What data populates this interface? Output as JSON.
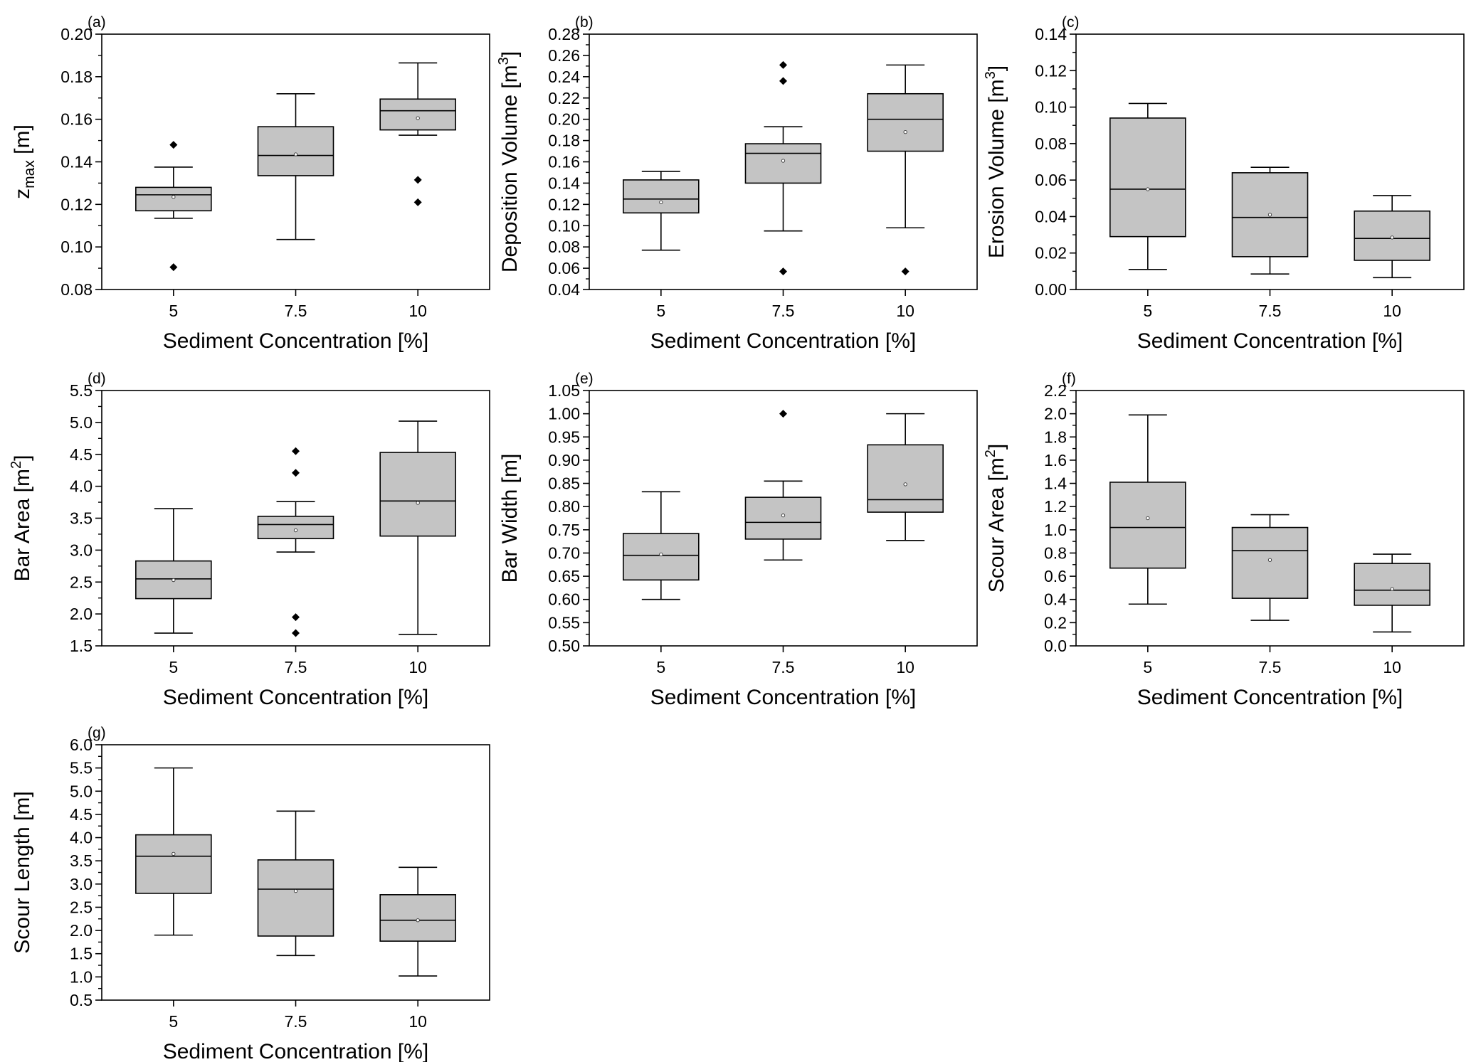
{
  "chart_data": [
    {
      "type": "box",
      "panel_label": "(a)",
      "xlabel": "Sediment Concentration [%]",
      "ylabel": {
        "base": "z",
        "sub": "max",
        "unit": " [m]"
      },
      "categories": [
        "5",
        "7.5",
        "10"
      ],
      "ylim": [
        0.08,
        0.2
      ],
      "yticks": [
        0.08,
        0.1,
        0.12,
        0.14,
        0.16,
        0.18,
        0.2
      ],
      "tick_decimals": 2,
      "boxes": [
        {
          "whisker_low": 0.1135,
          "q1": 0.117,
          "median": 0.1245,
          "q3": 0.128,
          "whisker_high": 0.1375,
          "mean": 0.1235,
          "outliers": [
            0.148,
            0.0905
          ]
        },
        {
          "whisker_low": 0.1035,
          "q1": 0.1335,
          "median": 0.143,
          "q3": 0.1565,
          "whisker_high": 0.172,
          "mean": 0.1435,
          "outliers": []
        },
        {
          "whisker_low": 0.1525,
          "q1": 0.155,
          "median": 0.164,
          "q3": 0.1695,
          "whisker_high": 0.1865,
          "mean": 0.1605,
          "outliers": [
            0.1315,
            0.121
          ]
        }
      ]
    },
    {
      "type": "box",
      "panel_label": "(b)",
      "xlabel": "Sediment Concentration [%]",
      "ylabel": {
        "base": "Deposition Volume [m",
        "sup": "3",
        "unit": "]"
      },
      "categories": [
        "5",
        "7.5",
        "10"
      ],
      "ylim": [
        0.04,
        0.28
      ],
      "yticks": [
        0.04,
        0.06,
        0.08,
        0.1,
        0.12,
        0.14,
        0.16,
        0.18,
        0.2,
        0.22,
        0.24,
        0.26,
        0.28
      ],
      "tick_decimals": 2,
      "boxes": [
        {
          "whisker_low": 0.077,
          "q1": 0.112,
          "median": 0.125,
          "q3": 0.143,
          "whisker_high": 0.151,
          "mean": 0.122,
          "outliers": []
        },
        {
          "whisker_low": 0.095,
          "q1": 0.14,
          "median": 0.168,
          "q3": 0.177,
          "whisker_high": 0.193,
          "mean": 0.161,
          "outliers": [
            0.251,
            0.236,
            0.057
          ]
        },
        {
          "whisker_low": 0.098,
          "q1": 0.17,
          "median": 0.2,
          "q3": 0.224,
          "whisker_high": 0.251,
          "mean": 0.188,
          "outliers": [
            0.057
          ]
        }
      ]
    },
    {
      "type": "box",
      "panel_label": "(c)",
      "xlabel": "Sediment Concentration [%]",
      "ylabel": {
        "base": "Erosion Volume [m",
        "sup": "3",
        "unit": "]"
      },
      "categories": [
        "5",
        "7.5",
        "10"
      ],
      "ylim": [
        0.0,
        0.14
      ],
      "yticks": [
        0.0,
        0.02,
        0.04,
        0.06,
        0.08,
        0.1,
        0.12,
        0.14
      ],
      "tick_decimals": 2,
      "boxes": [
        {
          "whisker_low": 0.011,
          "q1": 0.029,
          "median": 0.055,
          "q3": 0.094,
          "whisker_high": 0.102,
          "mean": 0.055,
          "outliers": []
        },
        {
          "whisker_low": 0.0085,
          "q1": 0.018,
          "median": 0.0395,
          "q3": 0.064,
          "whisker_high": 0.067,
          "mean": 0.041,
          "outliers": []
        },
        {
          "whisker_low": 0.0065,
          "q1": 0.016,
          "median": 0.028,
          "q3": 0.043,
          "whisker_high": 0.0515,
          "mean": 0.0285,
          "outliers": []
        }
      ]
    },
    {
      "type": "box",
      "panel_label": "(d)",
      "xlabel": "Sediment Concentration [%]",
      "ylabel": {
        "base": "Bar Area [m",
        "sup": "2",
        "unit": "]"
      },
      "categories": [
        "5",
        "7.5",
        "10"
      ],
      "ylim": [
        1.5,
        5.5
      ],
      "yticks": [
        1.5,
        2.0,
        2.5,
        3.0,
        3.5,
        4.0,
        4.5,
        5.0,
        5.5
      ],
      "tick_decimals": 1,
      "boxes": [
        {
          "whisker_low": 1.7,
          "q1": 2.24,
          "median": 2.55,
          "q3": 2.83,
          "whisker_high": 3.65,
          "mean": 2.53,
          "outliers": []
        },
        {
          "whisker_low": 2.97,
          "q1": 3.18,
          "median": 3.4,
          "q3": 3.53,
          "whisker_high": 3.76,
          "mean": 3.31,
          "outliers": [
            4.55,
            4.21,
            1.95,
            1.7
          ]
        },
        {
          "whisker_low": 1.68,
          "q1": 3.22,
          "median": 3.77,
          "q3": 4.53,
          "whisker_high": 5.02,
          "mean": 3.74,
          "outliers": []
        }
      ]
    },
    {
      "type": "box",
      "panel_label": "(e)",
      "xlabel": "Sediment Concentration [%]",
      "ylabel": {
        "base": "Bar Width [m]"
      },
      "categories": [
        "5",
        "7.5",
        "10"
      ],
      "ylim": [
        0.5,
        1.05
      ],
      "yticks": [
        0.5,
        0.55,
        0.6,
        0.65,
        0.7,
        0.75,
        0.8,
        0.85,
        0.9,
        0.95,
        1.0,
        1.05
      ],
      "tick_decimals": 2,
      "boxes": [
        {
          "whisker_low": 0.6,
          "q1": 0.642,
          "median": 0.695,
          "q3": 0.742,
          "whisker_high": 0.832,
          "mean": 0.697,
          "outliers": []
        },
        {
          "whisker_low": 0.685,
          "q1": 0.73,
          "median": 0.766,
          "q3": 0.82,
          "whisker_high": 0.855,
          "mean": 0.781,
          "outliers": [
            1.0
          ]
        },
        {
          "whisker_low": 0.727,
          "q1": 0.788,
          "median": 0.815,
          "q3": 0.933,
          "whisker_high": 1.0,
          "mean": 0.848,
          "outliers": []
        }
      ]
    },
    {
      "type": "box",
      "panel_label": "(f)",
      "xlabel": "Sediment Concentration [%]",
      "ylabel": {
        "base": "Scour Area [m",
        "sup": "2",
        "unit": "]"
      },
      "categories": [
        "5",
        "7.5",
        "10"
      ],
      "ylim": [
        0.0,
        2.2
      ],
      "yticks": [
        0.0,
        0.2,
        0.4,
        0.6,
        0.8,
        1.0,
        1.2,
        1.4,
        1.6,
        1.8,
        2.0,
        2.2
      ],
      "tick_decimals": 1,
      "boxes": [
        {
          "whisker_low": 0.36,
          "q1": 0.67,
          "median": 1.02,
          "q3": 1.41,
          "whisker_high": 1.99,
          "mean": 1.1,
          "outliers": []
        },
        {
          "whisker_low": 0.22,
          "q1": 0.41,
          "median": 0.82,
          "q3": 1.02,
          "whisker_high": 1.13,
          "mean": 0.74,
          "outliers": []
        },
        {
          "whisker_low": 0.12,
          "q1": 0.35,
          "median": 0.48,
          "q3": 0.71,
          "whisker_high": 0.79,
          "mean": 0.49,
          "outliers": []
        }
      ]
    },
    {
      "type": "box",
      "panel_label": "(g)",
      "xlabel": "Sediment Concentration [%]",
      "ylabel": {
        "base": "Scour Length [m]"
      },
      "categories": [
        "5",
        "7.5",
        "10"
      ],
      "ylim": [
        0.5,
        6.0
      ],
      "yticks": [
        0.5,
        1.0,
        1.5,
        2.0,
        2.5,
        3.0,
        3.5,
        4.0,
        4.5,
        5.0,
        5.5,
        6.0
      ],
      "tick_decimals": 1,
      "boxes": [
        {
          "whisker_low": 1.9,
          "q1": 2.8,
          "median": 3.6,
          "q3": 4.06,
          "whisker_high": 5.5,
          "mean": 3.65,
          "outliers": []
        },
        {
          "whisker_low": 1.46,
          "q1": 1.88,
          "median": 2.89,
          "q3": 3.52,
          "whisker_high": 4.57,
          "mean": 2.85,
          "outliers": []
        },
        {
          "whisker_low": 1.02,
          "q1": 1.77,
          "median": 2.22,
          "q3": 2.77,
          "whisker_high": 3.36,
          "mean": 2.22,
          "outliers": []
        }
      ]
    }
  ],
  "colors": {
    "box_fill": "#c4c4c4",
    "stroke": "#000000",
    "background": "#ffffff"
  }
}
